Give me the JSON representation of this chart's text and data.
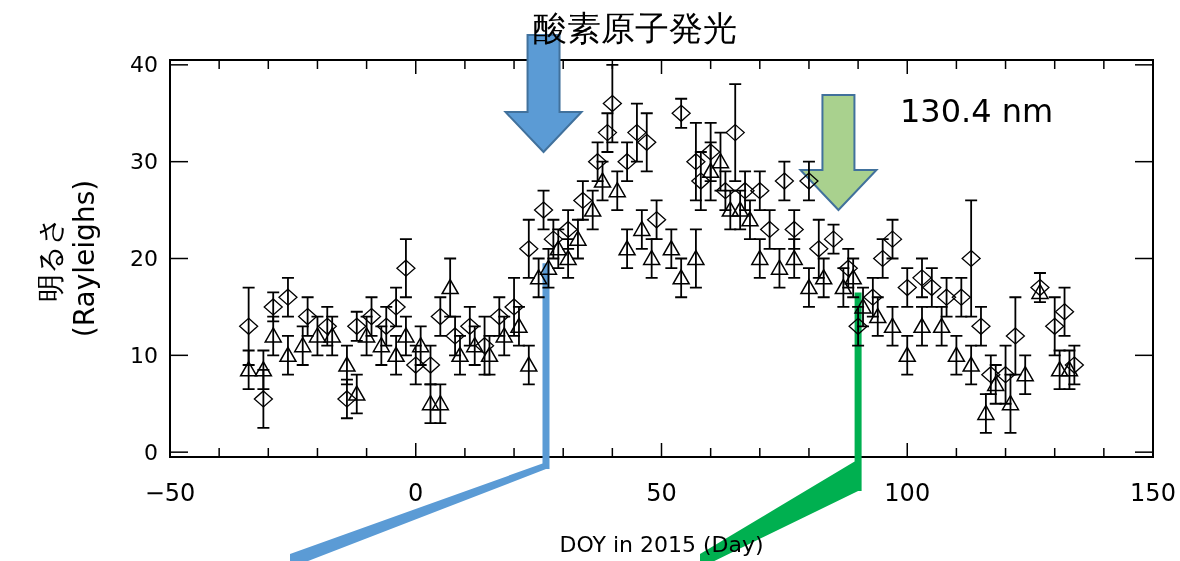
{
  "chart_data": {
    "type": "scatter",
    "title": "酸素原子発光",
    "xlabel": "DOY in 2015 (Day)",
    "ylabel": "明るさ\n(Rayleighs)",
    "annotations": [
      "130.4 nm"
    ],
    "xlim": [
      -50,
      150
    ],
    "ylim": [
      -0.5,
      40.5
    ],
    "xticks": [
      -50,
      {
        "value": -40,
        "label": null
      },
      {
        "value": -30,
        "label": null
      },
      {
        "value": -20,
        "label": null
      },
      {
        "value": -10,
        "label": null
      },
      0,
      {
        "value": 10,
        "label": null
      },
      {
        "value": 20,
        "label": null
      },
      {
        "value": 30,
        "label": null
      },
      {
        "value": 40,
        "label": null
      },
      50,
      {
        "value": 60,
        "label": null
      },
      {
        "value": 70,
        "label": null
      },
      {
        "value": 80,
        "label": null
      },
      {
        "value": 90,
        "label": null
      },
      100,
      {
        "value": 110,
        "label": null
      },
      {
        "value": 120,
        "label": null
      },
      {
        "value": 130,
        "label": null
      },
      {
        "value": 140,
        "label": null
      },
      150
    ],
    "yticks": [
      0,
      10,
      20,
      30,
      40
    ],
    "series": [
      {
        "color": "#000000",
        "marker": "diamond",
        "x": [
          -34,
          -31,
          -29,
          -26,
          -22,
          -18,
          -14,
          -12,
          -9,
          -6,
          -4,
          -2,
          0,
          3,
          5,
          8,
          11,
          14,
          17,
          20,
          23,
          26,
          28,
          31,
          34,
          37,
          39,
          40,
          43,
          45,
          47,
          49,
          54,
          57,
          58,
          60,
          63,
          65,
          67,
          70,
          72,
          75,
          77,
          80,
          82,
          85,
          88,
          90,
          93,
          95,
          97,
          100,
          103,
          105,
          108,
          111,
          113,
          115,
          117,
          120,
          122,
          127,
          130,
          132,
          134
        ],
        "values": [
          13,
          5.5,
          15,
          16,
          14,
          13,
          5.5,
          13,
          14,
          13,
          15,
          19,
          9,
          9,
          14,
          12,
          13,
          11,
          14,
          15,
          21,
          25,
          22,
          23,
          26,
          30,
          33,
          36,
          30,
          33,
          32,
          24,
          35,
          30,
          28,
          31,
          27,
          33,
          27,
          27,
          23,
          28,
          23,
          28,
          21,
          22,
          19,
          13,
          16,
          20,
          22,
          17,
          18,
          17,
          16,
          16,
          20,
          13,
          8,
          8,
          12,
          17,
          13,
          14.5,
          9
        ],
        "errors": [
          4,
          3,
          1.5,
          2,
          2,
          2,
          2,
          1.5,
          2,
          2,
          2,
          3,
          2,
          2,
          2,
          2,
          2,
          3,
          2,
          3,
          3,
          2,
          2,
          2,
          2,
          2,
          2,
          4,
          2,
          3,
          3,
          2,
          1.5,
          4,
          3,
          3,
          2,
          5,
          2,
          2,
          2,
          2,
          2,
          2,
          3,
          1.5,
          2,
          2,
          2,
          2,
          2,
          2,
          2,
          2,
          2,
          2,
          6,
          2,
          2,
          3,
          4,
          1.5,
          3,
          2.5,
          2
        ]
      },
      {
        "color": "#000000",
        "marker": "triangle",
        "x": [
          -34,
          -31,
          -29,
          -26,
          -23,
          -20,
          -17,
          -14,
          -12,
          -10,
          -7,
          -4,
          -2,
          1,
          3,
          5,
          7,
          9,
          12,
          15,
          18,
          21,
          23,
          25,
          27,
          29,
          31,
          33,
          36,
          38,
          41,
          43,
          46,
          48,
          52,
          54,
          57,
          60,
          62,
          64,
          66,
          68,
          70,
          74,
          77,
          80,
          83,
          87,
          89,
          91,
          94,
          97,
          100,
          103,
          107,
          110,
          113,
          116,
          118,
          121,
          124,
          127,
          131,
          133
        ],
        "values": [
          8.5,
          8.5,
          12,
          10,
          11,
          12,
          12,
          9,
          6,
          12,
          11,
          10,
          12,
          11,
          5,
          5,
          17,
          10,
          11,
          10,
          12,
          13,
          9,
          18,
          19,
          21,
          20,
          22,
          25,
          28,
          27,
          21,
          23,
          20,
          21,
          18,
          20,
          29,
          30,
          25,
          25,
          24,
          20,
          19,
          20,
          17,
          18,
          17,
          18,
          15,
          14,
          13,
          10,
          13,
          13,
          10,
          9,
          4,
          7,
          5,
          8,
          16.5,
          8.5,
          8.5
        ],
        "errors": [
          2,
          2,
          2,
          2,
          2,
          2,
          2,
          2,
          2,
          2,
          2,
          2,
          2,
          2,
          2,
          2,
          3,
          2,
          2,
          2,
          2,
          2,
          2,
          2,
          2,
          2,
          2,
          2,
          2,
          2,
          2,
          2,
          2,
          2,
          2,
          2,
          3,
          3,
          3,
          2,
          2,
          2,
          2,
          2,
          2,
          2,
          2,
          2,
          2,
          2,
          2,
          2,
          2,
          2,
          2,
          2,
          2,
          2,
          2,
          3,
          2,
          null,
          2,
          2
        ]
      }
    ]
  }
}
